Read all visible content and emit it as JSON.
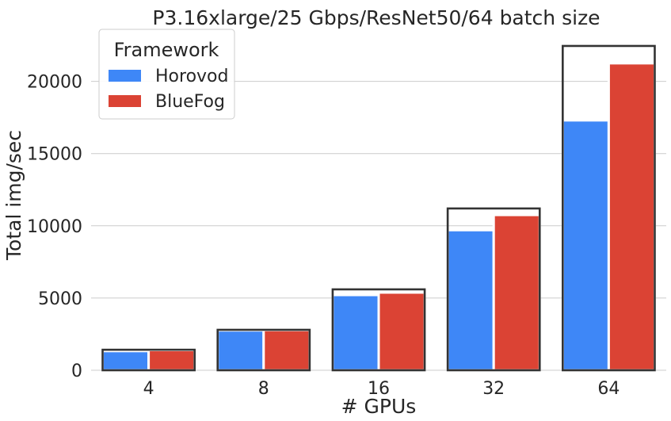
{
  "chart_data": {
    "type": "bar",
    "title": "P3.16xlarge/25 Gbps/ResNet50/64 batch size",
    "xlabel": "# GPUs",
    "ylabel": "Total img/sec",
    "categories": [
      "4",
      "8",
      "16",
      "32",
      "64"
    ],
    "series": [
      {
        "name": "Horovod",
        "color": "#3e87f7",
        "values": [
          1330,
          2760,
          5210,
          9700,
          17300
        ]
      },
      {
        "name": "BlueFog",
        "color": "#db4334",
        "values": [
          1400,
          2780,
          5380,
          10750,
          21250
        ]
      }
    ],
    "ideal_values": [
      1420,
      2800,
      5600,
      11200,
      22450
    ],
    "ideal_outline_color": "#333333",
    "ylim": [
      0,
      23600
    ],
    "yticks": [
      0,
      5000,
      10000,
      15000,
      20000
    ],
    "grid": "horizontal",
    "legend": {
      "title": "Framework",
      "placement": "top-left"
    }
  }
}
